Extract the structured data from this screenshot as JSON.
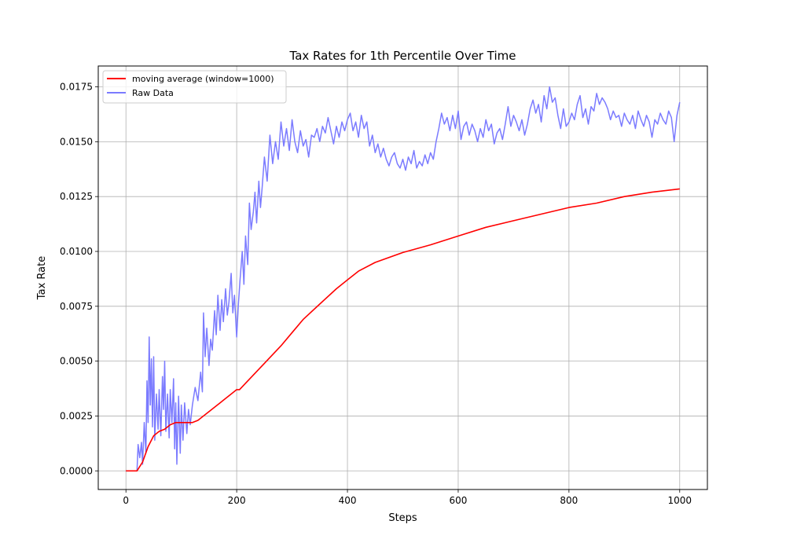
{
  "chart_data": {
    "type": "line",
    "title": "Tax Rates for 1th Percentile Over Time",
    "xlabel": "Steps",
    "ylabel": "Tax Rate",
    "xlim": [
      -50,
      1050
    ],
    "ylim": [
      -0.00085,
      0.01845
    ],
    "x_ticks": [
      0,
      200,
      400,
      600,
      800,
      1000
    ],
    "x_tick_labels": [
      "0",
      "200",
      "400",
      "600",
      "800",
      "1000"
    ],
    "y_ticks": [
      0.0,
      0.0025,
      0.005,
      0.0075,
      0.01,
      0.0125,
      0.015,
      0.0175
    ],
    "y_tick_labels": [
      "0.0000",
      "0.0025",
      "0.0050",
      "0.0075",
      "0.0100",
      "0.0125",
      "0.0150",
      "0.0175"
    ],
    "grid": true,
    "legend_position": "top-left",
    "series": [
      {
        "name": "moving average (window=1000)",
        "color": "#ff0000",
        "x": [
          0,
          20,
          30,
          40,
          50,
          60,
          70,
          80,
          90,
          100,
          110,
          120,
          130,
          140,
          150,
          160,
          170,
          180,
          190,
          200,
          205,
          220,
          250,
          280,
          300,
          320,
          350,
          380,
          400,
          420,
          450,
          500,
          550,
          600,
          650,
          700,
          750,
          800,
          850,
          900,
          950,
          1000
        ],
        "y": [
          0.0,
          0.0,
          0.0004,
          0.0011,
          0.0016,
          0.0018,
          0.0019,
          0.0021,
          0.0022,
          0.0022,
          0.0022,
          0.0022,
          0.0023,
          0.0025,
          0.0027,
          0.0029,
          0.0031,
          0.0033,
          0.0035,
          0.0037,
          0.0037,
          0.0041,
          0.0049,
          0.0057,
          0.0063,
          0.0069,
          0.0076,
          0.0083,
          0.0087,
          0.0091,
          0.0095,
          0.00995,
          0.0103,
          0.0107,
          0.0111,
          0.0114,
          0.0117,
          0.012,
          0.0122,
          0.0125,
          0.0127,
          0.01285
        ]
      },
      {
        "name": "Raw Data",
        "color": "#7b7bff",
        "x": [
          0,
          10,
          20,
          22,
          25,
          28,
          30,
          33,
          36,
          38,
          40,
          42,
          44,
          46,
          48,
          50,
          52,
          55,
          58,
          60,
          63,
          66,
          68,
          70,
          72,
          75,
          78,
          80,
          83,
          86,
          88,
          90,
          92,
          95,
          98,
          100,
          103,
          106,
          110,
          113,
          116,
          120,
          125,
          130,
          135,
          138,
          140,
          143,
          146,
          150,
          153,
          156,
          160,
          163,
          166,
          170,
          173,
          176,
          180,
          183,
          186,
          190,
          193,
          196,
          200,
          203,
          206,
          210,
          213,
          216,
          220,
          223,
          226,
          230,
          233,
          236,
          240,
          243,
          246,
          250,
          255,
          260,
          265,
          270,
          275,
          280,
          285,
          290,
          295,
          300,
          305,
          310,
          315,
          320,
          325,
          330,
          335,
          340,
          345,
          350,
          355,
          360,
          365,
          370,
          375,
          380,
          385,
          390,
          395,
          400,
          405,
          410,
          415,
          420,
          425,
          430,
          435,
          440,
          445,
          450,
          455,
          460,
          465,
          470,
          475,
          480,
          485,
          490,
          495,
          500,
          505,
          510,
          515,
          520,
          525,
          530,
          535,
          540,
          545,
          550,
          555,
          560,
          565,
          570,
          575,
          580,
          585,
          590,
          595,
          600,
          605,
          610,
          615,
          620,
          625,
          630,
          635,
          640,
          645,
          650,
          655,
          660,
          665,
          670,
          675,
          680,
          685,
          690,
          695,
          700,
          705,
          710,
          715,
          720,
          725,
          730,
          735,
          740,
          745,
          750,
          755,
          760,
          765,
          770,
          775,
          780,
          785,
          790,
          795,
          800,
          805,
          810,
          815,
          820,
          825,
          830,
          835,
          840,
          845,
          850,
          855,
          860,
          865,
          870,
          875,
          880,
          885,
          890,
          895,
          900,
          905,
          910,
          915,
          920,
          925,
          930,
          935,
          940,
          945,
          950,
          955,
          960,
          965,
          970,
          975,
          980,
          985,
          990,
          995,
          1000
        ],
        "y": [
          0.0,
          0.0,
          0.0,
          0.0012,
          0.0006,
          0.0013,
          0.0003,
          0.0022,
          0.0008,
          0.0041,
          0.0022,
          0.0061,
          0.003,
          0.0051,
          0.002,
          0.0052,
          0.0014,
          0.0035,
          0.0019,
          0.0037,
          0.0016,
          0.0043,
          0.0028,
          0.005,
          0.0018,
          0.0035,
          0.0015,
          0.0037,
          0.0022,
          0.0042,
          0.001,
          0.0031,
          0.0003,
          0.0034,
          0.0008,
          0.003,
          0.0014,
          0.0031,
          0.0017,
          0.0028,
          0.0021,
          0.003,
          0.0038,
          0.0032,
          0.0045,
          0.0036,
          0.0072,
          0.0052,
          0.0065,
          0.0048,
          0.006,
          0.0055,
          0.0073,
          0.0062,
          0.008,
          0.0064,
          0.0078,
          0.0068,
          0.0083,
          0.0071,
          0.0077,
          0.009,
          0.0072,
          0.008,
          0.0061,
          0.0076,
          0.0087,
          0.01,
          0.0085,
          0.0107,
          0.0094,
          0.0122,
          0.011,
          0.0118,
          0.0127,
          0.0113,
          0.0132,
          0.012,
          0.0129,
          0.0143,
          0.0132,
          0.0153,
          0.014,
          0.015,
          0.0142,
          0.0159,
          0.0148,
          0.0156,
          0.0146,
          0.016,
          0.015,
          0.0145,
          0.0155,
          0.0148,
          0.0151,
          0.0143,
          0.0153,
          0.0152,
          0.0156,
          0.015,
          0.0157,
          0.0154,
          0.0161,
          0.0155,
          0.0149,
          0.0157,
          0.0152,
          0.0159,
          0.0155,
          0.016,
          0.0163,
          0.0155,
          0.0159,
          0.0152,
          0.0162,
          0.0156,
          0.0159,
          0.0148,
          0.0153,
          0.0145,
          0.0149,
          0.0143,
          0.0147,
          0.0142,
          0.0139,
          0.0143,
          0.0145,
          0.014,
          0.0138,
          0.0142,
          0.0137,
          0.0143,
          0.014,
          0.0146,
          0.0138,
          0.0141,
          0.0139,
          0.0144,
          0.014,
          0.0145,
          0.0142,
          0.015,
          0.0156,
          0.0163,
          0.0158,
          0.0161,
          0.0155,
          0.0162,
          0.0156,
          0.0164,
          0.0151,
          0.0157,
          0.0159,
          0.0153,
          0.0158,
          0.0155,
          0.015,
          0.0156,
          0.0152,
          0.016,
          0.0155,
          0.0158,
          0.0149,
          0.0154,
          0.0156,
          0.0151,
          0.0158,
          0.0166,
          0.0157,
          0.0162,
          0.0159,
          0.0155,
          0.016,
          0.0153,
          0.0158,
          0.0165,
          0.0169,
          0.0163,
          0.0167,
          0.0159,
          0.0171,
          0.0165,
          0.0175,
          0.0168,
          0.017,
          0.0162,
          0.0156,
          0.0165,
          0.0157,
          0.0159,
          0.0163,
          0.016,
          0.0167,
          0.0171,
          0.0161,
          0.0165,
          0.0158,
          0.0166,
          0.0164,
          0.0172,
          0.0167,
          0.017,
          0.0168,
          0.0165,
          0.016,
          0.0164,
          0.0161,
          0.0162,
          0.0157,
          0.0163,
          0.016,
          0.0158,
          0.0162,
          0.0156,
          0.0164,
          0.016,
          0.0157,
          0.0162,
          0.0159,
          0.0152,
          0.016,
          0.0158,
          0.0163,
          0.016,
          0.0158,
          0.0164,
          0.0161,
          0.015,
          0.0162,
          0.0168
        ]
      }
    ]
  }
}
